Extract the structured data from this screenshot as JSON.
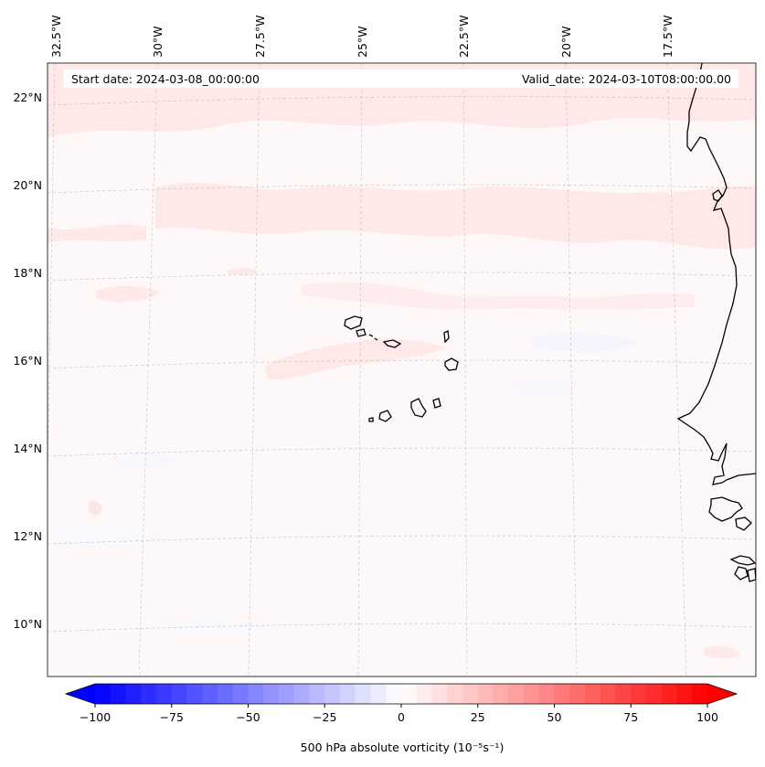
{
  "header": {
    "start_date": "Start date: 2024-03-08_00:00:00",
    "valid_date": "Valid_date: 2024-03-10T08:00:00.00"
  },
  "map": {
    "longitude_labels": [
      "32.5°W",
      "30°W",
      "27.5°W",
      "25°W",
      "22.5°W",
      "20°W",
      "17.5°W"
    ],
    "latitude_labels": [
      "22°N",
      "20°N",
      "18°N",
      "16°N",
      "14°N",
      "12°N",
      "10°N"
    ],
    "gridlines": true
  },
  "colorbar": {
    "label": "500 hPa absolute vorticity (10⁻⁵s⁻¹)",
    "ticks": [
      "−100",
      "−75",
      "−50",
      "−25",
      "0",
      "25",
      "50",
      "75",
      "100"
    ],
    "range": [
      -100,
      100
    ],
    "colormap": "bwr",
    "extend": "both",
    "color_low": "#0000ff",
    "color_mid": "#ffffff",
    "color_high": "#ff0000"
  }
}
